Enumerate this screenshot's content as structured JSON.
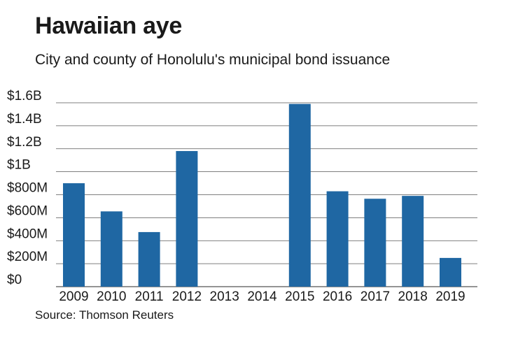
{
  "header": {
    "title": "Hawaiian aye",
    "subtitle": "City and county of Honolulu's municipal bond issuance"
  },
  "footer": {
    "source": "Source: Thomson Reuters"
  },
  "colors": {
    "bar": "#1f67a3",
    "grid": "#555555",
    "text": "#1a1a1a"
  },
  "chart_data": {
    "type": "bar",
    "title": "Hawaiian aye",
    "subtitle": "City and county of Honolulu's municipal bond issuance",
    "xlabel": "",
    "ylabel": "",
    "unit": "USD millions",
    "categories": [
      "2009",
      "2010",
      "2011",
      "2012",
      "2013",
      "2014",
      "2015",
      "2016",
      "2017",
      "2018",
      "2019"
    ],
    "values": [
      900,
      655,
      475,
      1180,
      0,
      0,
      1590,
      830,
      765,
      790,
      250
    ],
    "ylim": [
      0,
      1600
    ],
    "yticks": [
      0,
      200,
      400,
      600,
      800,
      1000,
      1200,
      1400,
      1600
    ],
    "ytick_labels": [
      "$0",
      "$200M",
      "$400M",
      "$600M",
      "$800M",
      "$1B",
      "$1.2B",
      "$1.4B",
      "$1.6B"
    ],
    "grid": true,
    "legend": "none"
  }
}
